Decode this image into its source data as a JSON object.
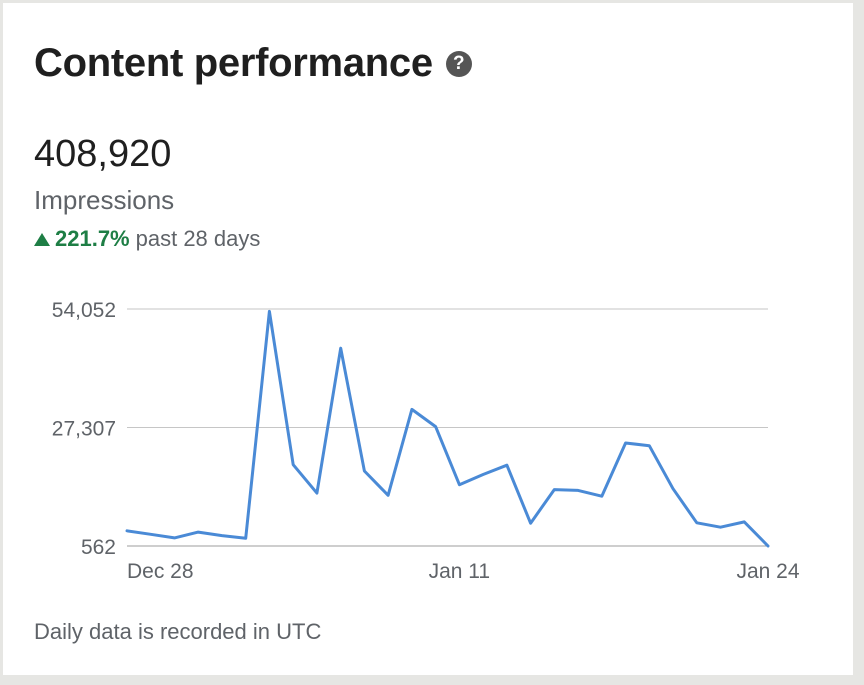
{
  "header": {
    "title": "Content performance",
    "help_icon": "help-circle-icon",
    "help_glyph": "?"
  },
  "metric": {
    "value": "408,920",
    "label": "Impressions",
    "change_value": "221.7%",
    "change_period": "past 28 days",
    "change_direction_icon": "triangle-up-icon",
    "change_color": "#1e7e45"
  },
  "footnote": "Daily data is recorded in UTC",
  "chart_data": {
    "type": "line",
    "title": "",
    "xlabel": "",
    "ylabel": "",
    "x": [
      "Dec 28",
      "Dec 29",
      "Dec 30",
      "Dec 31",
      "Jan 1",
      "Jan 2",
      "Jan 3",
      "Jan 4",
      "Jan 5",
      "Jan 6",
      "Jan 7",
      "Jan 8",
      "Jan 9",
      "Jan 10",
      "Jan 11",
      "Jan 12",
      "Jan 13",
      "Jan 14",
      "Jan 15",
      "Jan 16",
      "Jan 17",
      "Jan 18",
      "Jan 19",
      "Jan 20",
      "Jan 21",
      "Jan 22",
      "Jan 23",
      "Jan 24"
    ],
    "series": [
      {
        "color": "#4a8ad6",
        "values": [
          4000,
          3200,
          2400,
          3700,
          2900,
          2300,
          53500,
          18900,
          12500,
          45200,
          17500,
          12000,
          31400,
          27500,
          14400,
          16700,
          18800,
          5700,
          13300,
          13100,
          11800,
          23800,
          23200,
          13500,
          5800,
          4800,
          6000,
          562
        ]
      }
    ],
    "yticks": [
      "562",
      "27,307",
      "54,052"
    ],
    "ytick_values": [
      562,
      27307,
      54052
    ],
    "xticks": [
      "Dec 28",
      "Jan 11",
      "Jan 24"
    ],
    "ylim": [
      562,
      54052
    ],
    "grid": true,
    "legend": "none"
  }
}
